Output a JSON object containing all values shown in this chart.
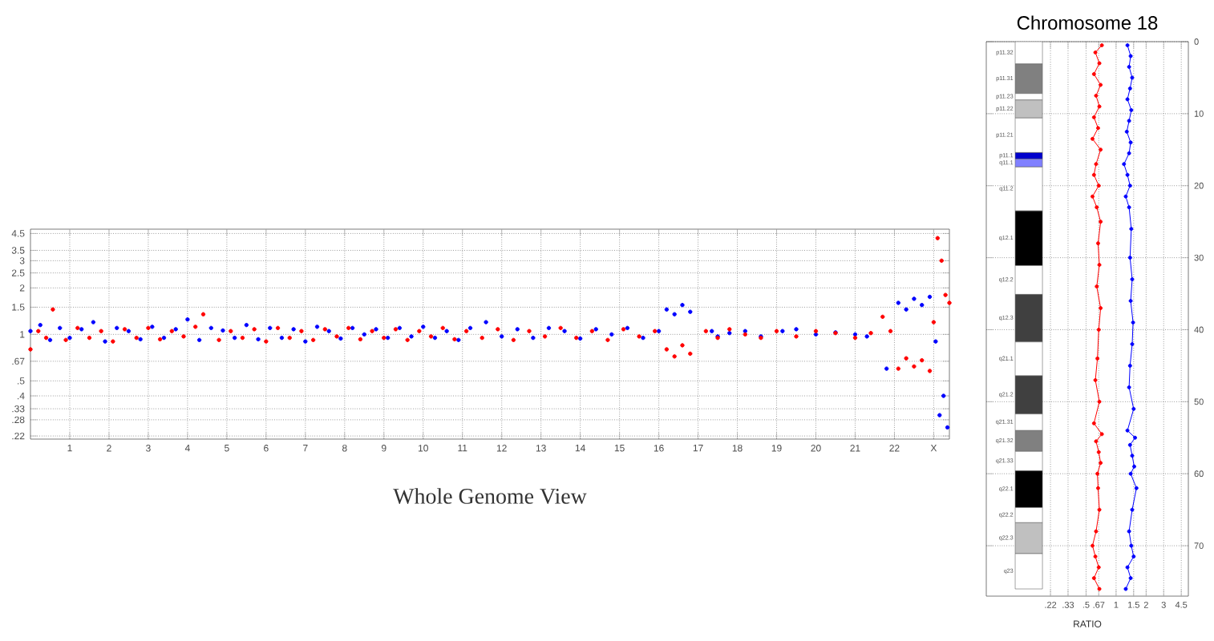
{
  "chart_data": [
    {
      "type": "scatter",
      "xlabel": "Whole Genome View",
      "log": "y",
      "grid": true,
      "marker": "circle",
      "xlim": [
        0,
        23.4
      ],
      "ylim": [
        0.21,
        4.8
      ],
      "xticks": [
        1,
        2,
        3,
        4,
        5,
        6,
        7,
        8,
        9,
        10,
        11,
        12,
        13,
        14,
        15,
        16,
        17,
        18,
        19,
        20,
        21,
        22,
        {
          "value": 23,
          "label": "X"
        }
      ],
      "yticks": [
        {
          "value": 0.22,
          "label": ".22"
        },
        {
          "value": 0.28,
          "label": ".28"
        },
        {
          "value": 0.33,
          "label": ".33"
        },
        {
          "value": 0.4,
          "label": ".4"
        },
        {
          "value": 0.5,
          "label": ".5"
        },
        {
          "value": 0.67,
          "label": ".67"
        },
        1,
        1.5,
        2,
        2.5,
        3,
        3.5,
        4.5
      ],
      "series": [
        {
          "color": "#0000ff",
          "x": [
            0,
            0.25,
            0.5,
            0.75,
            1.0,
            1.3,
            1.6,
            1.9,
            2.2,
            2.5,
            2.8,
            3.1,
            3.4,
            3.7,
            4.0,
            4.3,
            4.6,
            4.9,
            5.2,
            5.5,
            5.8,
            6.1,
            6.4,
            6.7,
            7.0,
            7.3,
            7.6,
            7.9,
            8.2,
            8.5,
            8.8,
            9.1,
            9.4,
            9.7,
            10.0,
            10.3,
            10.6,
            10.9,
            11.2,
            11.6,
            12.0,
            12.4,
            12.8,
            13.2,
            13.6,
            14.0,
            14.4,
            14.8,
            15.2,
            15.6,
            16.0,
            16.2,
            16.4,
            16.6,
            16.8,
            17.35,
            17.5,
            17.8,
            18.2,
            18.6,
            19.15,
            19.5,
            20.0,
            20.5,
            21.0,
            21.3,
            21.8,
            22.1,
            22.3,
            22.5,
            22.7,
            22.9,
            23.05,
            23.15,
            23.25,
            23.35
          ],
          "values": [
            1.05,
            1.15,
            0.92,
            1.1,
            0.95,
            1.08,
            1.2,
            0.9,
            1.1,
            1.05,
            0.93,
            1.12,
            0.95,
            1.08,
            1.25,
            0.92,
            1.1,
            1.06,
            0.95,
            1.15,
            0.93,
            1.1,
            0.95,
            1.08,
            0.9,
            1.12,
            1.05,
            0.94,
            1.1,
            1.0,
            1.08,
            0.95,
            1.1,
            0.97,
            1.12,
            0.95,
            1.05,
            0.92,
            1.1,
            1.2,
            0.97,
            1.08,
            0.95,
            1.1,
            1.05,
            0.94,
            1.08,
            1.0,
            1.1,
            0.95,
            1.05,
            1.45,
            1.35,
            1.55,
            1.4,
            1.05,
            0.97,
            1.02,
            1.05,
            0.97,
            1.05,
            1.08,
            1.0,
            1.03,
            1.0,
            0.97,
            0.6,
            1.6,
            1.45,
            1.7,
            1.55,
            1.75,
            0.9,
            0.3,
            0.4,
            0.25
          ]
        },
        {
          "color": "#ff0000",
          "x": [
            0,
            0.2,
            0.4,
            0.57,
            0.9,
            1.2,
            1.5,
            1.8,
            2.1,
            2.4,
            2.7,
            3.0,
            3.3,
            3.6,
            3.9,
            4.2,
            4.4,
            4.8,
            5.1,
            5.4,
            5.7,
            6.0,
            6.3,
            6.6,
            6.9,
            7.2,
            7.5,
            7.8,
            8.1,
            8.4,
            8.7,
            9.0,
            9.3,
            9.6,
            9.9,
            10.2,
            10.5,
            10.8,
            11.1,
            11.5,
            11.9,
            12.3,
            12.7,
            13.1,
            13.5,
            13.9,
            14.3,
            14.7,
            15.1,
            15.5,
            15.9,
            16.2,
            16.4,
            16.6,
            16.8,
            17.2,
            17.5,
            17.8,
            18.2,
            18.6,
            19.0,
            19.5,
            20.0,
            20.5,
            21.0,
            21.4,
            21.7,
            21.9,
            22.1,
            22.3,
            22.5,
            22.7,
            22.9,
            23.0,
            23.1,
            23.2,
            23.3,
            23.4
          ],
          "values": [
            0.8,
            1.05,
            0.95,
            1.45,
            0.92,
            1.1,
            0.95,
            1.05,
            0.9,
            1.08,
            0.95,
            1.1,
            0.93,
            1.05,
            0.97,
            1.12,
            1.35,
            0.92,
            1.05,
            0.95,
            1.08,
            0.9,
            1.1,
            0.95,
            1.05,
            0.92,
            1.08,
            0.97,
            1.1,
            0.93,
            1.05,
            0.95,
            1.08,
            0.92,
            1.05,
            0.97,
            1.1,
            0.93,
            1.05,
            0.95,
            1.08,
            0.92,
            1.05,
            0.97,
            1.1,
            0.95,
            1.05,
            0.92,
            1.08,
            0.97,
            1.05,
            0.8,
            0.72,
            0.85,
            0.75,
            1.05,
            0.95,
            1.08,
            1.0,
            0.95,
            1.05,
            0.97,
            1.05,
            1.02,
            0.95,
            1.02,
            1.3,
            1.05,
            0.6,
            0.7,
            0.62,
            0.68,
            0.58,
            1.2,
            4.2,
            3.0,
            1.8,
            1.6
          ]
        }
      ]
    },
    {
      "type": "line",
      "title": "Chromosome 18",
      "xlabel": "RATIO",
      "log": "x",
      "grid": true,
      "marker": "circle",
      "xlim": [
        0.05,
        5.3
      ],
      "ylim": [
        77,
        0
      ],
      "xticks": [
        {
          "value": 0.22,
          "label": ".22"
        },
        {
          "value": 0.33,
          "label": ".33"
        },
        {
          "value": 0.5,
          "label": ".5"
        },
        {
          "value": 0.67,
          "label": ".67"
        },
        1,
        1.5,
        2,
        3,
        4.5
      ],
      "yticks": [
        0,
        10,
        20,
        30,
        40,
        50,
        60,
        70
      ],
      "bands": [
        {
          "axis": "y",
          "from": 0,
          "to": 3.1,
          "label": "p11.32",
          "color": "#ffffff"
        },
        {
          "axis": "y",
          "from": 3.1,
          "to": 7.2,
          "label": "p11.31",
          "color": "#808080"
        },
        {
          "axis": "y",
          "from": 7.2,
          "to": 8.1,
          "label": "p11.23",
          "color": "#ffffff"
        },
        {
          "axis": "y",
          "from": 8.1,
          "to": 10.6,
          "label": "p11.22",
          "color": "#c0c0c0"
        },
        {
          "axis": "y",
          "from": 10.6,
          "to": 15.4,
          "label": "p11.21",
          "color": "#ffffff"
        },
        {
          "axis": "y",
          "from": 15.4,
          "to": 16.3,
          "label": "p11.1",
          "color": "#0000cc"
        },
        {
          "axis": "y",
          "from": 16.3,
          "to": 17.4,
          "label": "q11.1",
          "color": "#8080ff"
        },
        {
          "axis": "y",
          "from": 17.4,
          "to": 23.5,
          "label": "q11.2",
          "color": "#ffffff"
        },
        {
          "axis": "y",
          "from": 23.5,
          "to": 31.1,
          "label": "q12.1",
          "color": "#000000"
        },
        {
          "axis": "y",
          "from": 31.1,
          "to": 35.1,
          "label": "q12.2",
          "color": "#ffffff"
        },
        {
          "axis": "y",
          "from": 35.1,
          "to": 41.7,
          "label": "q12.3",
          "color": "#404040"
        },
        {
          "axis": "y",
          "from": 41.7,
          "to": 46.4,
          "label": "q21.1",
          "color": "#ffffff"
        },
        {
          "axis": "y",
          "from": 46.4,
          "to": 51.7,
          "label": "q21.2",
          "color": "#404040"
        },
        {
          "axis": "y",
          "from": 51.7,
          "to": 54,
          "label": "q21.31",
          "color": "#ffffff"
        },
        {
          "axis": "y",
          "from": 54,
          "to": 56.9,
          "label": "q21.32",
          "color": "#808080"
        },
        {
          "axis": "y",
          "from": 56.9,
          "to": 59.6,
          "label": "q21.33",
          "color": "#ffffff"
        },
        {
          "axis": "y",
          "from": 59.6,
          "to": 64.7,
          "label": "q22.1",
          "color": "#000000"
        },
        {
          "axis": "y",
          "from": 64.7,
          "to": 66.8,
          "label": "q22.2",
          "color": "#ffffff"
        },
        {
          "axis": "y",
          "from": 66.8,
          "to": 71.1,
          "label": "q22.3",
          "color": "#c0c0c0"
        },
        {
          "axis": "y",
          "from": 71.1,
          "to": 76,
          "label": "q23",
          "color": "#ffffff"
        }
      ],
      "series": [
        {
          "color": "#ff0000",
          "x": [
            0.72,
            0.62,
            0.68,
            0.6,
            0.7,
            0.63,
            0.68,
            0.6,
            0.66,
            0.58,
            0.7,
            0.63,
            0.6,
            0.67,
            0.58,
            0.64,
            0.7,
            0.66,
            0.68,
            0.64,
            0.7,
            0.67,
            0.65,
            0.62,
            0.68,
            0.6,
            0.72,
            0.63,
            0.67,
            0.7,
            0.65,
            0.66,
            0.68,
            0.63,
            0.58,
            0.62,
            0.67,
            0.6,
            0.68
          ],
          "values": [
            0.5,
            1.5,
            3,
            4.5,
            6,
            7.5,
            9,
            10.5,
            12,
            13.5,
            15,
            17,
            18.5,
            20,
            21.5,
            23,
            25,
            28,
            31,
            34,
            37,
            40,
            44,
            47,
            50,
            53,
            54.5,
            55.5,
            57,
            58.5,
            60,
            62,
            65,
            68,
            70,
            71.5,
            73,
            74.5,
            76
          ]
        },
        {
          "color": "#0000ff",
          "x": [
            1.3,
            1.4,
            1.35,
            1.45,
            1.38,
            1.3,
            1.42,
            1.35,
            1.28,
            1.4,
            1.35,
            1.2,
            1.3,
            1.38,
            1.25,
            1.35,
            1.42,
            1.38,
            1.45,
            1.4,
            1.48,
            1.45,
            1.38,
            1.35,
            1.5,
            1.3,
            1.55,
            1.38,
            1.45,
            1.52,
            1.4,
            1.6,
            1.45,
            1.35,
            1.42,
            1.5,
            1.3,
            1.4,
            1.25
          ],
          "values": [
            0.5,
            2,
            3.5,
            5,
            6.5,
            8,
            9.5,
            11,
            12.5,
            14,
            15.5,
            17,
            18.5,
            20,
            21.5,
            23,
            26,
            30,
            33,
            36,
            39,
            42,
            45,
            48,
            51,
            54,
            55,
            56,
            57.5,
            59,
            60,
            62,
            65,
            68,
            70,
            71.5,
            73,
            74.5,
            76
          ]
        }
      ]
    }
  ]
}
